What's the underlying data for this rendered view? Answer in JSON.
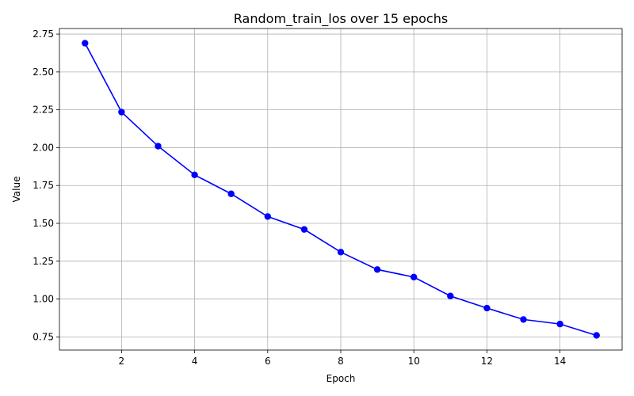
{
  "chart_data": {
    "type": "line",
    "title": "Random_train_los over 15 epochs",
    "xlabel": "Epoch",
    "ylabel": "Value",
    "x": [
      1,
      2,
      3,
      4,
      5,
      6,
      7,
      8,
      9,
      10,
      11,
      12,
      13,
      14,
      15
    ],
    "series": [
      {
        "values": [
          2.69,
          2.235,
          2.01,
          1.82,
          1.695,
          1.545,
          1.46,
          1.31,
          1.195,
          1.145,
          1.02,
          0.94,
          0.865,
          0.835,
          0.76
        ],
        "color": "#0000ff",
        "marker": "circle"
      }
    ],
    "xlim": [
      0.3,
      15.7
    ],
    "ylim": [
      0.663,
      2.787
    ],
    "xticks": [
      2,
      4,
      6,
      8,
      10,
      12,
      14
    ],
    "xtick_labels": [
      "2",
      "4",
      "6",
      "8",
      "10",
      "12",
      "14"
    ],
    "yticks": [
      0.75,
      1.0,
      1.25,
      1.5,
      1.75,
      2.0,
      2.25,
      2.5,
      2.75
    ],
    "ytick_labels": [
      "0.75",
      "1.00",
      "1.25",
      "1.50",
      "1.75",
      "2.00",
      "2.25",
      "2.50",
      "2.75"
    ],
    "grid": true,
    "legend": "none"
  }
}
